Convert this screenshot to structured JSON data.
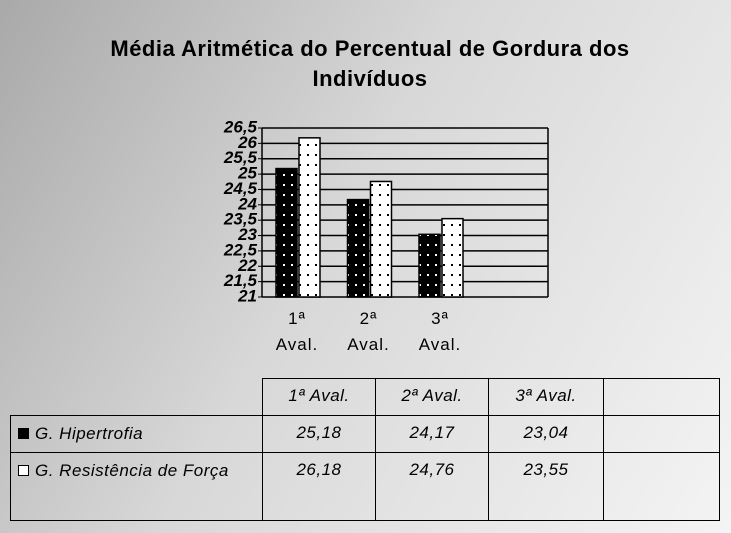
{
  "chart_data": {
    "type": "bar",
    "title": "Média Aritmética do Percentual de Gordura dos Indivíduos",
    "categories": [
      "1ª Aval.",
      "2ª Aval.",
      "3ª Aval."
    ],
    "series": [
      {
        "name": "G. Hipertrofia",
        "color": "#000000",
        "values": [
          25.18,
          24.17,
          23.04
        ],
        "value_labels": [
          "25,18",
          "24,17",
          "23,04"
        ]
      },
      {
        "name": "G. Resistência de Força",
        "color": "#ffffff",
        "values": [
          26.18,
          24.76,
          23.55
        ],
        "value_labels": [
          "26,18",
          "24,76",
          "23,55"
        ]
      }
    ],
    "ylim": [
      21,
      26.5
    ],
    "yticks": [
      21,
      {
        "value": 21.5,
        "label": "21,5"
      },
      22,
      {
        "value": 22.5,
        "label": "22,5"
      },
      23,
      {
        "value": 23.5,
        "label": "23,5"
      },
      24,
      {
        "value": 24.5,
        "label": "24,5"
      },
      25,
      {
        "value": 25.5,
        "label": "25,5"
      },
      26,
      {
        "value": 26.5,
        "label": "26,5"
      }
    ],
    "grid": true
  }
}
